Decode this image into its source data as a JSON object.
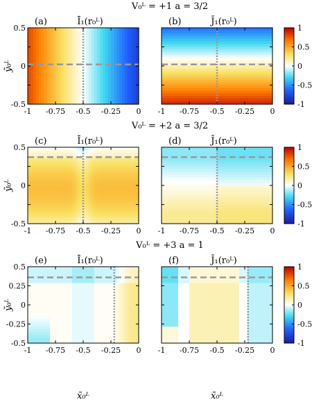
{
  "colormap": {
    "stops": [
      "#1a1aa0",
      "#2060ff",
      "#40d8f0",
      "#ffffff",
      "#f8e060",
      "#ff8000",
      "#c00000"
    ],
    "range": [
      -1,
      1
    ],
    "ticks": [
      "1",
      "0.5",
      "0",
      "-0.5",
      "-1"
    ]
  },
  "rows": [
    {
      "header": "V₀ᴸ = +1   a = 3/2",
      "cbar_ticks": [
        "1",
        "0.5",
        "0",
        "-0.5",
        "-1"
      ],
      "show_xlabel": false
    },
    {
      "header": "V₀ᴸ = +2   a = 3/2",
      "cbar_ticks": [
        "1",
        "0.5",
        "0",
        "-0.5",
        "-1"
      ],
      "show_xlabel": false
    },
    {
      "header": "V₀ᴸ = +3   a = 1",
      "cbar_ticks": [
        "1",
        "0.5",
        "0",
        "-0.5",
        "-1"
      ],
      "show_xlabel": true
    }
  ],
  "axis_labels": {
    "xlabel": "x̃₀ᴸ",
    "ylabel": "ỹ₀ᴸ"
  },
  "chart_data": [
    {
      "type": "heatmap",
      "panel": "(a)",
      "title": "Ī₁(r₀ᴸ)",
      "xlim": [
        -1,
        0
      ],
      "ylim": [
        -0.5,
        0.5
      ],
      "x_ticks": [
        "-1",
        "-0.75",
        "-0.5",
        "-0.25",
        "0"
      ],
      "y_ticks": [
        "0.5",
        "0",
        "-0.5"
      ],
      "vline": -0.5,
      "hline": 0.02,
      "colorbar": false,
      "model": {
        "kind": "x_linear",
        "from": 0.8,
        "to": -0.8
      }
    },
    {
      "type": "heatmap",
      "panel": "(b)",
      "title": "J̄₁(r₀ᴸ)",
      "xlim": [
        -1,
        0
      ],
      "ylim": [
        -0.5,
        0.5
      ],
      "x_ticks": [
        "-1",
        "-0.75",
        "-0.5",
        "-0.25",
        "0"
      ],
      "y_ticks": [],
      "vline": -0.5,
      "hline": 0.02,
      "colorbar": true,
      "model": {
        "kind": "y_linear",
        "top": -0.6,
        "bottom": 0.9
      }
    },
    {
      "type": "heatmap",
      "panel": "(c)",
      "title": "Ī₁(r₀ᴸ)",
      "xlim": [
        -1,
        0
      ],
      "ylim": [
        -0.5,
        0.5
      ],
      "x_ticks": [
        "-1",
        "-0.75",
        "-0.5",
        "-0.25",
        "0"
      ],
      "y_ticks": [
        "0.5",
        "0",
        "-0.5"
      ],
      "vline": -0.5,
      "hline": 0.37,
      "colorbar": false,
      "model": {
        "kind": "c"
      }
    },
    {
      "type": "heatmap",
      "panel": "(d)",
      "title": "J̄₁(r₀ᴸ)",
      "xlim": [
        -1,
        0
      ],
      "ylim": [
        -0.5,
        0.5
      ],
      "x_ticks": [
        "-1",
        "-0.75",
        "-0.5",
        "-0.25",
        "0"
      ],
      "y_ticks": [],
      "vline": -0.5,
      "hline": 0.37,
      "colorbar": true,
      "model": {
        "kind": "d"
      }
    },
    {
      "type": "heatmap",
      "panel": "(e)",
      "title": "Ī₁(r₀ᴸ)",
      "xlim": [
        -1,
        0
      ],
      "ylim": [
        -0.5,
        0.5
      ],
      "x_ticks": [
        "-1",
        "-0.75",
        "-0.5",
        "-0.25",
        "0"
      ],
      "y_ticks": [
        "0.5",
        "0.25",
        "0",
        "-0.25",
        "-0.5"
      ],
      "vline": -0.22,
      "hline": 0.36,
      "colorbar": false,
      "model": {
        "kind": "e"
      }
    },
    {
      "type": "heatmap",
      "panel": "(f)",
      "title": "J̄₁(r₀ᴸ)",
      "xlim": [
        -1,
        0
      ],
      "ylim": [
        -0.5,
        0.5
      ],
      "x_ticks": [
        "-1",
        "-0.75",
        "-0.5",
        "-0.25",
        "0"
      ],
      "y_ticks": [],
      "vline": -0.22,
      "hline": 0.36,
      "colorbar": true,
      "model": {
        "kind": "f"
      }
    }
  ]
}
